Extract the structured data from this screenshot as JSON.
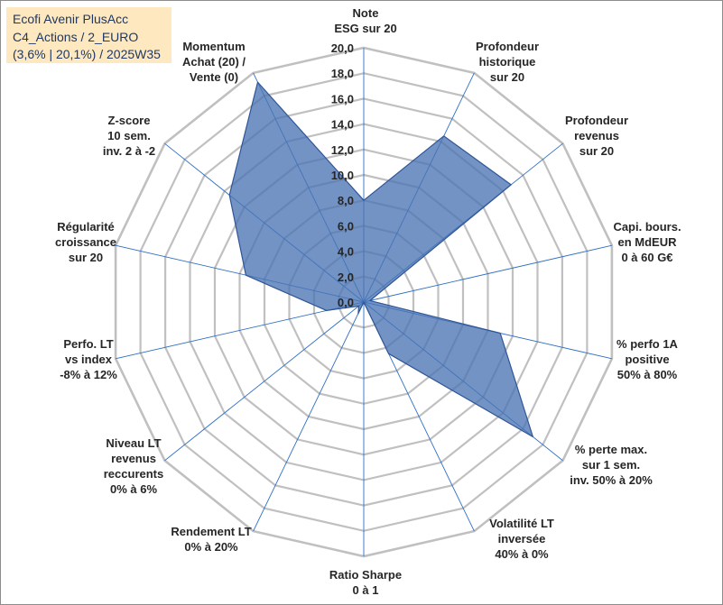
{
  "fund_box": {
    "lines": [
      "Ecofi Avenir PlusAcc",
      "C4_Actions / 2_EURO",
      "(3,6% | 20,1%) / 2025W35"
    ]
  },
  "chart_data": {
    "type": "radar",
    "title": "Ecofi Avenir PlusAcc C4_Actions / 2_EURO (3,6% | 20,1%) / 2025W35",
    "rlim": [
      0,
      20
    ],
    "ticks": [
      "0,0",
      "2,0",
      "4,0",
      "6,0",
      "8,0",
      "10,0",
      "12,0",
      "14,0",
      "16,0",
      "18,0",
      "20,0"
    ],
    "grid": true,
    "categories": [
      [
        "Note",
        "ESG sur 20"
      ],
      [
        "Profondeur",
        "historique",
        "sur 20"
      ],
      [
        "Profondeur",
        "revenus",
        "sur 20"
      ],
      [
        "Capi. bours.",
        "en MdEUR",
        "0 à 60 G€"
      ],
      [
        "% perfo 1A",
        "positive",
        "50% à 80%"
      ],
      [
        "% perte max.",
        "sur 1 sem.",
        "inv. 50% à 20%"
      ],
      [
        "Volatilité LT",
        "inversée",
        "40% à 0%"
      ],
      [
        "Ratio Sharpe",
        "0 à 1"
      ],
      [
        "Rendement LT",
        "0% à 20%"
      ],
      [
        "Niveau LT",
        "revenus",
        "reccurents",
        "0% à 6%"
      ],
      [
        "Perfo. LT",
        "vs index",
        "-8% à 12%"
      ],
      [
        "Régularité",
        "croissance",
        "sur 20"
      ],
      [
        "Z-score",
        "10 sem.",
        "inv. 2 à -2"
      ],
      [
        "Momentum",
        "Achat (20) /",
        "Vente (0)"
      ]
    ],
    "series": [
      {
        "values": [
          8.0,
          14.5,
          14.8,
          0.5,
          11.0,
          17.0,
          4.5,
          0.0,
          1.0,
          0.5,
          3.0,
          9.5,
          13.5,
          19.2
        ]
      }
    ],
    "colors": {
      "fill": "#4a74b3",
      "fill_opacity": 0.78,
      "stroke": "#2f5597",
      "grid": "#c0c0c0",
      "spoke": "#2f6fc6"
    }
  }
}
